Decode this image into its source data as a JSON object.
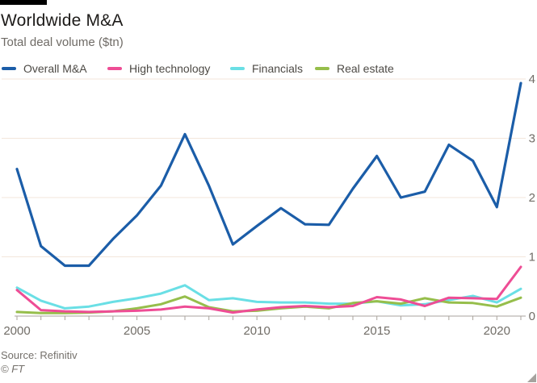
{
  "header": {
    "title": "Worldwide M&A",
    "subtitle": "Total deal volume ($tn)"
  },
  "chart_data": {
    "type": "line",
    "title": "Worldwide M&A",
    "subtitle": "Total deal volume ($tn)",
    "xlabel": "",
    "ylabel": "Total deal volume ($tn)",
    "x": [
      2000,
      2001,
      2002,
      2003,
      2004,
      2005,
      2006,
      2007,
      2008,
      2009,
      2010,
      2011,
      2012,
      2013,
      2014,
      2015,
      2016,
      2017,
      2018,
      2019,
      2020,
      2021
    ],
    "series": [
      {
        "name": "Overall M&A",
        "color": "#1b5da8",
        "values": [
          2.48,
          1.18,
          0.85,
          0.85,
          1.3,
          1.7,
          2.2,
          3.07,
          2.2,
          1.21,
          1.52,
          1.82,
          1.55,
          1.54,
          2.15,
          2.7,
          2.0,
          2.1,
          2.89,
          2.62,
          1.84,
          3.93
        ]
      },
      {
        "name": "High technology",
        "color": "#ee4d95",
        "values": [
          0.44,
          0.1,
          0.08,
          0.07,
          0.08,
          0.09,
          0.11,
          0.16,
          0.13,
          0.06,
          0.11,
          0.15,
          0.17,
          0.15,
          0.17,
          0.32,
          0.28,
          0.17,
          0.31,
          0.3,
          0.29,
          0.83
        ]
      },
      {
        "name": "Financials",
        "color": "#6adfe5",
        "values": [
          0.48,
          0.26,
          0.13,
          0.16,
          0.24,
          0.3,
          0.38,
          0.52,
          0.27,
          0.3,
          0.24,
          0.23,
          0.23,
          0.21,
          0.21,
          0.25,
          0.18,
          0.2,
          0.27,
          0.34,
          0.23,
          0.46
        ]
      },
      {
        "name": "Real estate",
        "color": "#96be4b",
        "values": [
          0.07,
          0.05,
          0.05,
          0.06,
          0.08,
          0.13,
          0.2,
          0.33,
          0.15,
          0.08,
          0.09,
          0.13,
          0.16,
          0.13,
          0.22,
          0.25,
          0.21,
          0.3,
          0.23,
          0.22,
          0.16,
          0.31
        ]
      }
    ],
    "ylim": [
      0,
      4
    ],
    "yticks": [
      0,
      1,
      2,
      3,
      4
    ],
    "xtick_labels": [
      2000,
      2005,
      2010,
      2015,
      2020
    ],
    "grid": "horizontal",
    "legend_position": "top",
    "y_axis_side": "right"
  },
  "footer": {
    "source": "Source: Refinitiv",
    "copyright": "© FT"
  },
  "colors": {
    "accent_bar": "#000000",
    "gridline": "#f3e6db",
    "axis": "#a9a39c",
    "tick_label": "#716d67",
    "background": "#ffffff"
  }
}
